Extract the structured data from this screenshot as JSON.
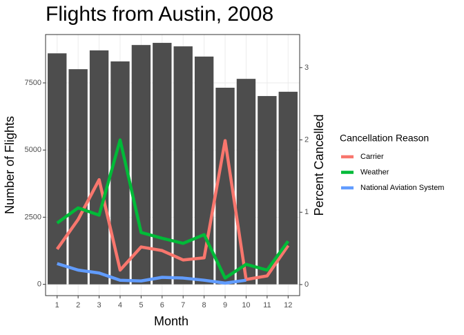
{
  "chart_data": {
    "type": "combo",
    "title": "Flights from Austin, 2008",
    "xlabel": "Month",
    "ylabel": "Number of Flights",
    "y2label": "Percent Cancelled",
    "legend_title": "Cancellation Reason",
    "legend": "right",
    "grid": true,
    "x": [
      1,
      2,
      3,
      4,
      5,
      6,
      7,
      8,
      9,
      10,
      11,
      12
    ],
    "xlim": [
      0.45,
      12.55
    ],
    "ylim": [
      -420,
      9300
    ],
    "yticks": [
      0,
      2500,
      5000,
      7500
    ],
    "y2lim": [
      -0.153,
      3.457
    ],
    "y2ticks": [
      0,
      1,
      2,
      3
    ],
    "bars": {
      "color": "#4d4d4d",
      "values": [
        8600,
        8010,
        8710,
        8300,
        8910,
        8990,
        8860,
        8480,
        7320,
        7650,
        7010,
        7170
      ]
    },
    "series": [
      {
        "name": "Carrier",
        "color": "#f8766d",
        "axis": "y2",
        "values": [
          0.49,
          0.9,
          1.45,
          0.2,
          0.52,
          0.47,
          0.34,
          0.37,
          1.99,
          0.07,
          0.12,
          0.54
        ]
      },
      {
        "name": "Weather",
        "color": "#00ba38",
        "axis": "y2",
        "values": [
          0.85,
          1.06,
          0.96,
          2.0,
          0.72,
          0.64,
          0.57,
          0.69,
          0.09,
          0.28,
          0.2,
          0.6
        ]
      },
      {
        "name": "National Aviation System",
        "color": "#619cff",
        "axis": "y2",
        "values": [
          0.29,
          0.2,
          0.16,
          0.06,
          0.05,
          0.1,
          0.09,
          0.06,
          0.02,
          0.06,
          null,
          null
        ]
      }
    ]
  }
}
